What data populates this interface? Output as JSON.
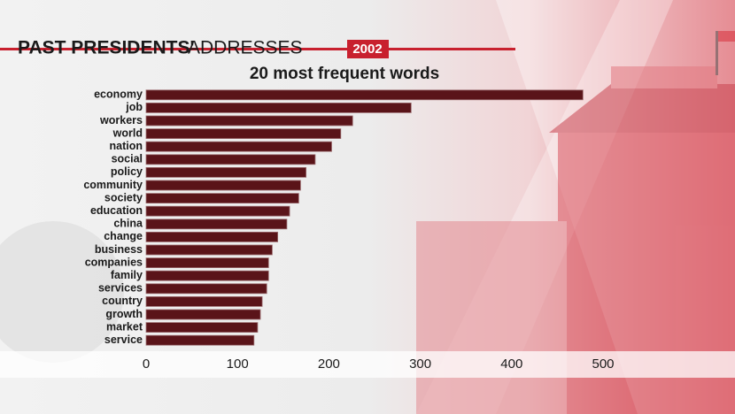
{
  "chart_data": {
    "type": "bar",
    "orientation": "horizontal",
    "title": [
      "PAST PRESIDENTS'",
      "ADDRESSES"
    ],
    "year": "2002",
    "subtitle": "20 most frequent words",
    "categories": [
      "economy",
      "job",
      "workers",
      "world",
      "nation",
      "social",
      "policy",
      "community",
      "society",
      "education",
      "china",
      "change",
      "business",
      "companies",
      "family",
      "services",
      "country",
      "growth",
      "market",
      "service"
    ],
    "values": [
      478,
      290,
      226,
      213,
      203,
      185,
      175,
      169,
      167,
      157,
      154,
      144,
      138,
      134,
      134,
      132,
      127,
      125,
      122,
      118
    ],
    "color": "#5a1419",
    "xlim": [
      0,
      500
    ],
    "xticks": [
      0,
      100,
      200,
      300,
      400,
      500
    ]
  }
}
